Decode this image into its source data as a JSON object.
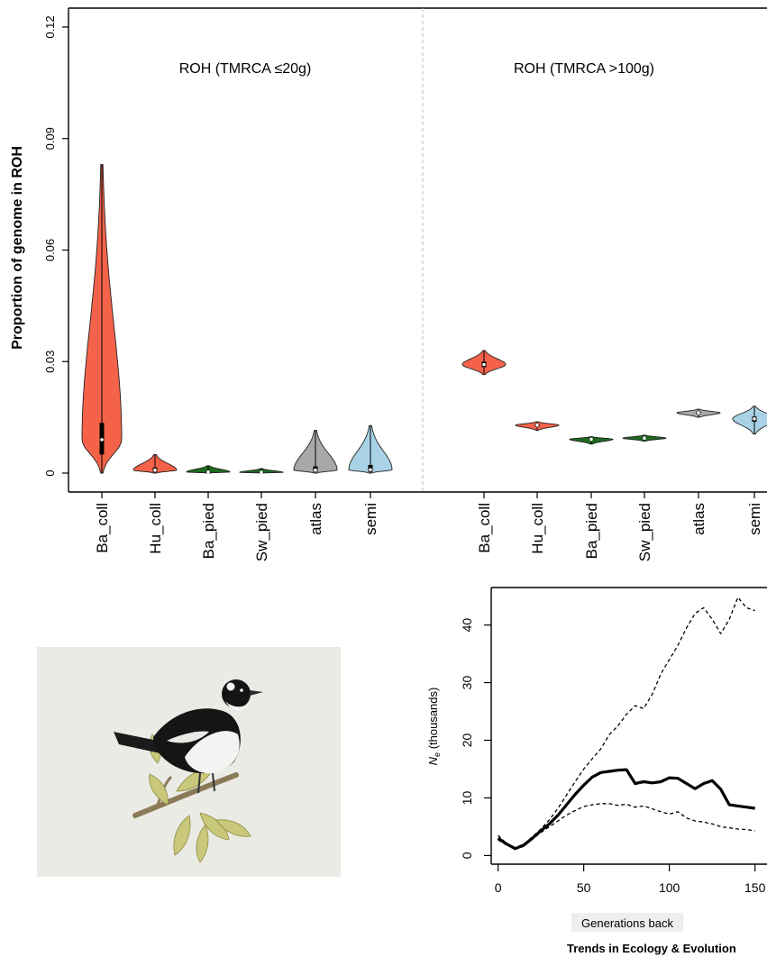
{
  "chart_data": [
    {
      "type": "violin",
      "ylabel": "Proportion of genome in ROH",
      "ylim": [
        0,
        0.12
      ],
      "yticks": [
        "0",
        "0.03",
        "0.06",
        "0.09",
        "0.12"
      ],
      "ytick_values": [
        0,
        0.03,
        0.06,
        0.09,
        0.12
      ],
      "panels": [
        {
          "title": "ROH (TMRCA ≤20g)",
          "categories": [
            "Ba_coll",
            "Hu_coll",
            "Ba_pied",
            "Sw_pied",
            "atlas",
            "semi"
          ],
          "violins": [
            {
              "name": "Ba_coll",
              "color": "#f4624a",
              "min": 0.0,
              "max": 0.083,
              "q1": 0.005,
              "median": 0.009,
              "q3": 0.0135
            },
            {
              "name": "Hu_coll",
              "color": "#f4624a",
              "min": 0.0,
              "max": 0.005,
              "q1": 0.0003,
              "median": 0.0008,
              "q3": 0.0015
            },
            {
              "name": "Ba_pied",
              "color": "#1e6b1e",
              "min": 0.0,
              "max": 0.002,
              "q1": 0.0001,
              "median": 0.0003,
              "q3": 0.0006
            },
            {
              "name": "Sw_pied",
              "color": "#1e6b1e",
              "min": 0.0,
              "max": 0.0012,
              "q1": 0.0001,
              "median": 0.0002,
              "q3": 0.0004
            },
            {
              "name": "atlas",
              "color": "#a8a8a8",
              "min": 0.0,
              "max": 0.0115,
              "q1": 0.0003,
              "median": 0.0008,
              "q3": 0.0018
            },
            {
              "name": "semi",
              "color": "#a9d2e6",
              "min": 0.0,
              "max": 0.0128,
              "q1": 0.0003,
              "median": 0.0009,
              "q3": 0.0022
            }
          ]
        },
        {
          "title": "ROH (TMRCA >100g)",
          "categories": [
            "Ba_coll",
            "Hu_coll",
            "Ba_pied",
            "Sw_pied",
            "atlas",
            "semi"
          ],
          "violins": [
            {
              "name": "Ba_coll",
              "color": "#f4624a",
              "min": 0.0265,
              "max": 0.033,
              "q1": 0.0285,
              "median": 0.0292,
              "q3": 0.03
            },
            {
              "name": "Hu_coll",
              "color": "#f4624a",
              "min": 0.0115,
              "max": 0.0138,
              "q1": 0.0125,
              "median": 0.0129,
              "q3": 0.0133
            },
            {
              "name": "Ba_pied",
              "color": "#1e6b1e",
              "min": 0.0078,
              "max": 0.0098,
              "q1": 0.0088,
              "median": 0.0091,
              "q3": 0.0094
            },
            {
              "name": "Sw_pied",
              "color": "#1e6b1e",
              "min": 0.0086,
              "max": 0.0102,
              "q1": 0.0092,
              "median": 0.0094,
              "q3": 0.0097
            },
            {
              "name": "atlas",
              "color": "#a8a8a8",
              "min": 0.015,
              "max": 0.0172,
              "q1": 0.0158,
              "median": 0.0162,
              "q3": 0.0166
            },
            {
              "name": "semi",
              "color": "#a9d2e6",
              "min": 0.0105,
              "max": 0.018,
              "q1": 0.0138,
              "median": 0.0146,
              "q3": 0.0152
            }
          ]
        }
      ]
    },
    {
      "type": "line",
      "xlabel": "Generations back",
      "ylabel": "N",
      "ylabel_sub": "e",
      "ylabel_suffix": " (thousands)",
      "xticks": [
        "0",
        "50",
        "100",
        "150"
      ],
      "xtick_values": [
        0,
        50,
        100,
        150
      ],
      "yticks": [
        "0",
        "10",
        "20",
        "30",
        "40"
      ],
      "ytick_values": [
        0,
        10,
        20,
        30,
        40
      ],
      "xlim": [
        -4,
        157
      ],
      "ylim": [
        -1.5,
        46.5
      ],
      "series": [
        {
          "style": "solid",
          "x": [
            0,
            5,
            10,
            15,
            20,
            25,
            30,
            35,
            40,
            45,
            50,
            55,
            60,
            65,
            70,
            75,
            80,
            85,
            90,
            95,
            100,
            105,
            110,
            115,
            120,
            125,
            130,
            135,
            140,
            145,
            150
          ],
          "y": [
            3,
            2,
            1.2,
            1.8,
            3,
            4.3,
            5.5,
            7,
            8.8,
            10.6,
            12.2,
            13.6,
            14.4,
            14.6,
            14.8,
            14.9,
            12.5,
            12.8,
            12.6,
            12.8,
            13.5,
            13.4,
            12.5,
            11.6,
            12.5,
            13,
            11.5,
            8.8,
            8.6,
            8.4,
            8.2
          ]
        },
        {
          "style": "dashed",
          "x": [
            0,
            5,
            10,
            15,
            20,
            25,
            30,
            35,
            40,
            45,
            50,
            55,
            60,
            65,
            70,
            75,
            80,
            85,
            90,
            95,
            100,
            105,
            110,
            115,
            120,
            125,
            130,
            135,
            140,
            145,
            150
          ],
          "y": [
            3.5,
            2.1,
            1.3,
            2,
            3.2,
            4.6,
            6.2,
            8.2,
            10.5,
            12.8,
            15,
            16.8,
            18.5,
            21,
            22.5,
            24.5,
            26,
            25.5,
            28,
            31.5,
            34,
            36.5,
            39.5,
            42,
            43,
            41,
            38.5,
            41,
            44.8,
            43,
            42.5
          ]
        },
        {
          "style": "dashed",
          "x": [
            0,
            5,
            10,
            15,
            20,
            25,
            30,
            35,
            40,
            45,
            50,
            55,
            60,
            65,
            70,
            75,
            80,
            85,
            90,
            95,
            100,
            105,
            110,
            115,
            120,
            125,
            130,
            135,
            140,
            145,
            150
          ],
          "y": [
            2.7,
            1.8,
            1.1,
            1.6,
            2.8,
            4,
            5,
            6,
            7,
            7.8,
            8.5,
            8.8,
            9,
            9,
            8.7,
            8.9,
            8.4,
            8.6,
            8.1,
            7.6,
            7.2,
            7.6,
            6.5,
            6,
            5.8,
            5.5,
            5,
            4.8,
            4.6,
            4.5,
            4.3
          ]
        }
      ]
    }
  ],
  "footer": "Trends in Ecology & Evolution",
  "illustration": {
    "subject": "bird-illustration",
    "background": "#ebebe6"
  }
}
